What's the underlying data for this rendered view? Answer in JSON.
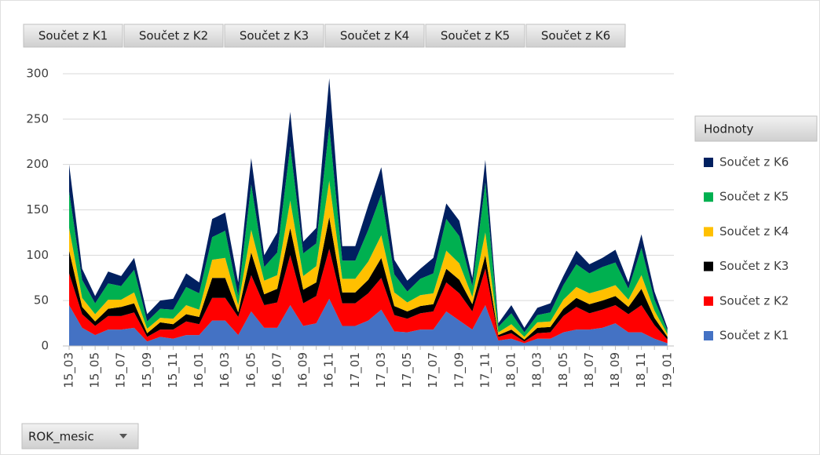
{
  "chart_data": {
    "type": "stacked_area",
    "legend_title": "Hodnoty",
    "x_field": "ROK_mesic",
    "legend": "right",
    "grid": true,
    "categories": [
      "15_03",
      null,
      "15_05",
      null,
      "15_07",
      null,
      "15_09",
      null,
      "15_11",
      null,
      "16_01",
      null,
      "16_03",
      null,
      "16_05",
      null,
      "16_07",
      null,
      "16_09",
      null,
      "16_11",
      null,
      "17_01",
      null,
      "17_03",
      null,
      "17_05",
      null,
      "17_07",
      null,
      "17_09",
      null,
      "17_11",
      null,
      "18_01",
      null,
      "18_03",
      null,
      "18_05",
      null,
      "18_07",
      null,
      "18_09",
      null,
      "18_11",
      null,
      "19_01"
    ],
    "ylim": [
      0,
      300
    ],
    "yticks": [
      0,
      50,
      100,
      150,
      200,
      250,
      300
    ],
    "series": [
      {
        "name": "Součet z K1",
        "color": "#4472c4",
        "values": [
          45,
          20,
          12,
          18,
          18,
          20,
          5,
          10,
          8,
          12,
          12,
          28,
          28,
          12,
          38,
          20,
          20,
          45,
          22,
          25,
          52,
          22,
          22,
          28,
          40,
          16,
          15,
          18,
          18,
          38,
          28,
          18,
          45,
          6,
          8,
          3,
          8,
          8,
          15,
          18,
          18,
          20,
          25,
          15,
          15,
          8,
          3
        ]
      },
      {
        "name": "Součet z K2",
        "color": "#ff0000",
        "values": [
          35,
          15,
          10,
          15,
          15,
          17,
          5,
          8,
          10,
          15,
          12,
          25,
          25,
          20,
          40,
          25,
          28,
          55,
          25,
          30,
          55,
          25,
          25,
          30,
          35,
          18,
          15,
          18,
          20,
          32,
          30,
          20,
          40,
          4,
          6,
          2,
          6,
          7,
          18,
          25,
          18,
          20,
          20,
          20,
          30,
          15,
          4
        ]
      },
      {
        "name": "Součet z K3",
        "color": "#000000",
        "values": [
          25,
          8,
          5,
          8,
          10,
          10,
          4,
          8,
          6,
          8,
          8,
          22,
          22,
          5,
          25,
          12,
          15,
          30,
          15,
          15,
          35,
          12,
          12,
          15,
          22,
          10,
          8,
          8,
          8,
          15,
          15,
          8,
          15,
          2,
          4,
          2,
          6,
          6,
          8,
          10,
          10,
          10,
          10,
          8,
          18,
          8,
          3
        ]
      },
      {
        "name": "Součet z K4",
        "color": "#ffc000",
        "values": [
          25,
          10,
          8,
          10,
          8,
          12,
          5,
          5,
          6,
          10,
          8,
          20,
          22,
          8,
          25,
          15,
          15,
          30,
          15,
          18,
          40,
          15,
          15,
          20,
          25,
          15,
          10,
          12,
          12,
          20,
          18,
          8,
          25,
          3,
          6,
          3,
          6,
          6,
          10,
          12,
          12,
          12,
          12,
          8,
          15,
          8,
          3
        ]
      },
      {
        "name": "Součet z K5",
        "color": "#00b050",
        "values": [
          40,
          20,
          12,
          18,
          15,
          25,
          8,
          10,
          10,
          20,
          18,
          25,
          30,
          10,
          50,
          15,
          25,
          60,
          25,
          25,
          60,
          20,
          20,
          35,
          45,
          20,
          12,
          18,
          22,
          35,
          30,
          12,
          55,
          6,
          12,
          5,
          8,
          10,
          16,
          25,
          22,
          25,
          25,
          12,
          30,
          12,
          4
        ]
      },
      {
        "name": "Součet z K6",
        "color": "#002060",
        "values": [
          30,
          12,
          8,
          13,
          11,
          13,
          8,
          9,
          12,
          15,
          12,
          20,
          20,
          15,
          29,
          13,
          22,
          38,
          13,
          17,
          53,
          16,
          16,
          27,
          30,
          16,
          12,
          11,
          17,
          17,
          17,
          9,
          25,
          4,
          9,
          5,
          8,
          10,
          10,
          15,
          10,
          10,
          14,
          7,
          15,
          9,
          3
        ]
      }
    ]
  }
}
